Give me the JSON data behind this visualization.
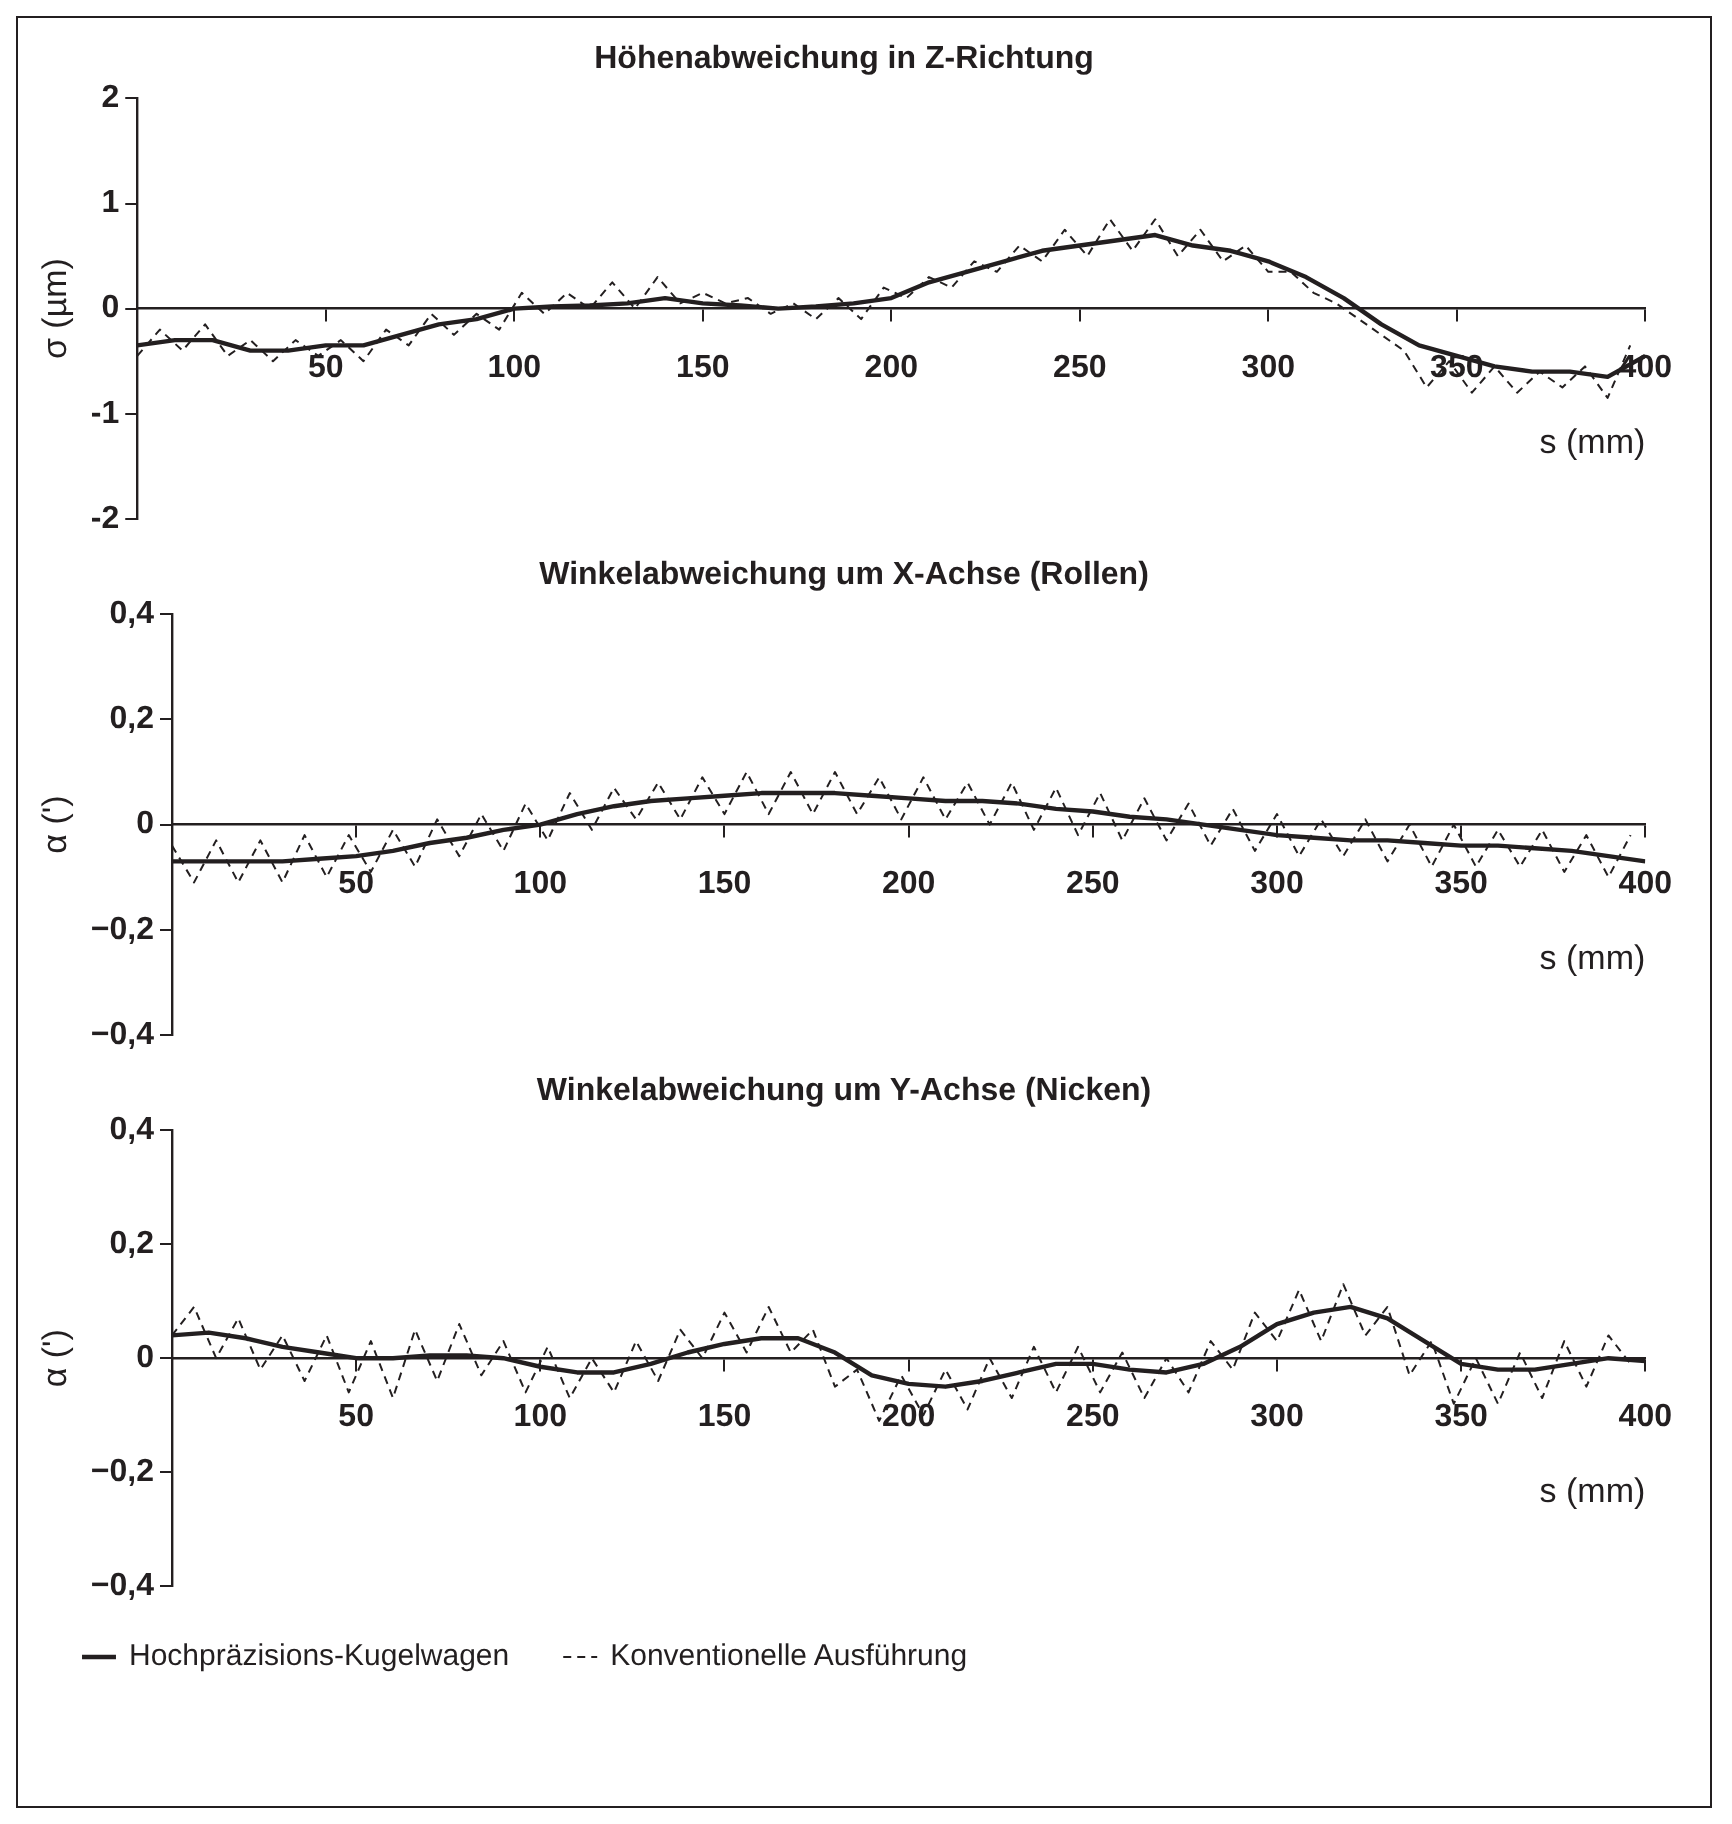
{
  "chart_data": [
    {
      "type": "line",
      "title": "Höhenabweichung in Z-Richtung",
      "ylabel": "σ (µm)",
      "xlabel": "s (mm)",
      "xlim": [
        0,
        400
      ],
      "xticks": [
        50,
        100,
        150,
        200,
        250,
        300,
        350,
        400
      ],
      "ylim": [
        -2,
        2
      ],
      "yticks": [
        -2,
        -1,
        0,
        1,
        2
      ],
      "grid": false,
      "marker": "none",
      "series": [
        {
          "color": "#231f20",
          "line_style": "solid",
          "x": [
            0,
            10,
            20,
            30,
            40,
            50,
            60,
            70,
            80,
            90,
            100,
            110,
            120,
            130,
            140,
            150,
            160,
            170,
            180,
            190,
            200,
            210,
            220,
            230,
            240,
            250,
            260,
            270,
            280,
            290,
            300,
            310,
            320,
            330,
            340,
            350,
            360,
            370,
            380,
            390,
            400
          ],
          "values": [
            -0.35,
            -0.3,
            -0.3,
            -0.4,
            -0.4,
            -0.35,
            -0.35,
            -0.25,
            -0.15,
            -0.1,
            0,
            0.02,
            0.03,
            0.05,
            0.1,
            0.05,
            0.03,
            0,
            0.02,
            0.05,
            0.1,
            0.25,
            0.35,
            0.45,
            0.55,
            0.6,
            0.65,
            0.7,
            0.6,
            0.55,
            0.45,
            0.3,
            0.1,
            -0.15,
            -0.35,
            -0.45,
            -0.55,
            -0.6,
            -0.6,
            -0.65,
            -0.45
          ]
        },
        {
          "color": "#231f20",
          "line_style": "dashed",
          "x": [
            0,
            6,
            12,
            18,
            24,
            30,
            36,
            42,
            48,
            54,
            60,
            66,
            72,
            78,
            84,
            90,
            96,
            102,
            108,
            114,
            120,
            126,
            132,
            138,
            144,
            150,
            156,
            162,
            168,
            174,
            180,
            186,
            192,
            198,
            204,
            210,
            216,
            222,
            228,
            234,
            240,
            246,
            252,
            258,
            264,
            270,
            276,
            282,
            288,
            294,
            300,
            306,
            312,
            318,
            324,
            330,
            336,
            342,
            348,
            354,
            360,
            366,
            372,
            378,
            384,
            390,
            396
          ],
          "values": [
            -0.45,
            -0.2,
            -0.4,
            -0.15,
            -0.45,
            -0.3,
            -0.5,
            -0.3,
            -0.45,
            -0.3,
            -0.5,
            -0.2,
            -0.35,
            -0.05,
            -0.25,
            -0.05,
            -0.2,
            0.15,
            -0.05,
            0.15,
            0,
            0.25,
            0,
            0.3,
            0.05,
            0.15,
            0.05,
            0.1,
            -0.05,
            0.05,
            -0.1,
            0.1,
            -0.1,
            0.2,
            0.1,
            0.3,
            0.2,
            0.45,
            0.35,
            0.6,
            0.45,
            0.75,
            0.5,
            0.85,
            0.55,
            0.85,
            0.5,
            0.75,
            0.45,
            0.6,
            0.35,
            0.35,
            0.15,
            0.05,
            -0.1,
            -0.25,
            -0.4,
            -0.75,
            -0.5,
            -0.8,
            -0.55,
            -0.8,
            -0.6,
            -0.75,
            -0.55,
            -0.85,
            -0.35
          ]
        }
      ]
    },
    {
      "type": "line",
      "title": "Winkelabweichung um X-Achse (Rollen)",
      "ylabel": "α (')",
      "xlabel": "s (mm)",
      "xlim": [
        0,
        400
      ],
      "xticks": [
        50,
        100,
        150,
        200,
        250,
        300,
        350,
        400
      ],
      "ylim": [
        -0.4,
        0.4
      ],
      "yticks": [
        {
          "value": -0.4,
          "label": "−0,4"
        },
        {
          "value": -0.2,
          "label": "−0,2"
        },
        0,
        {
          "value": 0.2,
          "label": "0,2"
        },
        {
          "value": 0.4,
          "label": "0,4"
        }
      ],
      "grid": false,
      "marker": "none",
      "series": [
        {
          "color": "#231f20",
          "line_style": "solid",
          "x": [
            0,
            10,
            20,
            30,
            40,
            50,
            60,
            70,
            80,
            90,
            100,
            110,
            120,
            130,
            140,
            150,
            160,
            170,
            180,
            190,
            200,
            210,
            220,
            230,
            240,
            250,
            260,
            270,
            280,
            290,
            300,
            310,
            320,
            330,
            340,
            350,
            360,
            370,
            380,
            390,
            400
          ],
          "values": [
            -0.07,
            -0.07,
            -0.07,
            -0.07,
            -0.065,
            -0.06,
            -0.05,
            -0.035,
            -0.025,
            -0.01,
            0,
            0.02,
            0.035,
            0.045,
            0.05,
            0.055,
            0.06,
            0.06,
            0.06,
            0.055,
            0.05,
            0.045,
            0.045,
            0.04,
            0.03,
            0.025,
            0.015,
            0.01,
            0,
            -0.01,
            -0.02,
            -0.025,
            -0.03,
            -0.03,
            -0.035,
            -0.04,
            -0.04,
            -0.045,
            -0.05,
            -0.06,
            -0.07
          ]
        },
        {
          "color": "#231f20",
          "line_style": "dashed",
          "x": [
            0,
            6,
            12,
            18,
            24,
            30,
            36,
            42,
            48,
            54,
            60,
            66,
            72,
            78,
            84,
            90,
            96,
            102,
            108,
            114,
            120,
            126,
            132,
            138,
            144,
            150,
            156,
            162,
            168,
            174,
            180,
            186,
            192,
            198,
            204,
            210,
            216,
            222,
            228,
            234,
            240,
            246,
            252,
            258,
            264,
            270,
            276,
            282,
            288,
            294,
            300,
            306,
            312,
            318,
            324,
            330,
            336,
            342,
            348,
            354,
            360,
            366,
            372,
            378,
            384,
            390,
            396
          ],
          "values": [
            -0.04,
            -0.11,
            -0.03,
            -0.11,
            -0.03,
            -0.11,
            -0.02,
            -0.1,
            -0.02,
            -0.09,
            -0.01,
            -0.08,
            0.01,
            -0.06,
            0.02,
            -0.05,
            0.04,
            -0.03,
            0.06,
            -0.01,
            0.07,
            0.01,
            0.08,
            0.01,
            0.09,
            0.02,
            0.1,
            0.02,
            0.1,
            0.02,
            0.1,
            0.02,
            0.09,
            0.01,
            0.09,
            0.01,
            0.08,
            0,
            0.08,
            -0.01,
            0.07,
            -0.02,
            0.06,
            -0.03,
            0.05,
            -0.03,
            0.04,
            -0.04,
            0.03,
            -0.05,
            0.02,
            -0.06,
            0.01,
            -0.06,
            0.01,
            -0.07,
            0,
            -0.08,
            0,
            -0.08,
            -0.01,
            -0.08,
            -0.01,
            -0.09,
            -0.02,
            -0.1,
            -0.02
          ]
        }
      ]
    },
    {
      "type": "line",
      "title": "Winkelabweichung um Y-Achse (Nicken)",
      "ylabel": "α (')",
      "xlabel": "s (mm)",
      "xlim": [
        0,
        400
      ],
      "xticks": [
        50,
        100,
        150,
        200,
        250,
        300,
        350,
        400
      ],
      "ylim": [
        -0.4,
        0.4
      ],
      "yticks": [
        {
          "value": -0.4,
          "label": "−0,4"
        },
        {
          "value": -0.2,
          "label": "−0,2"
        },
        0,
        {
          "value": 0.2,
          "label": "0,2"
        },
        {
          "value": 0.4,
          "label": "0,4"
        }
      ],
      "grid": false,
      "marker": "none",
      "legend": "bottom",
      "series": [
        {
          "name": "Hochpräzisions-Kugelwagen",
          "color": "#231f20",
          "line_style": "solid",
          "x": [
            0,
            10,
            20,
            30,
            40,
            50,
            60,
            70,
            80,
            90,
            100,
            110,
            120,
            130,
            140,
            150,
            160,
            170,
            180,
            190,
            200,
            210,
            220,
            230,
            240,
            250,
            260,
            270,
            280,
            290,
            300,
            310,
            320,
            330,
            340,
            350,
            360,
            370,
            380,
            390,
            400
          ],
          "values": [
            0.04,
            0.045,
            0.035,
            0.02,
            0.01,
            0,
            0,
            0.005,
            0.005,
            0,
            -0.015,
            -0.025,
            -0.025,
            -0.01,
            0.01,
            0.025,
            0.035,
            0.035,
            0.01,
            -0.03,
            -0.045,
            -0.05,
            -0.04,
            -0.025,
            -0.01,
            -0.01,
            -0.02,
            -0.025,
            -0.01,
            0.02,
            0.06,
            0.08,
            0.09,
            0.07,
            0.03,
            -0.01,
            -0.02,
            -0.02,
            -0.01,
            0,
            -0.005
          ]
        },
        {
          "name": "Konventionelle Ausführung",
          "color": "#231f20",
          "line_style": "dashed",
          "x": [
            0,
            6,
            12,
            18,
            24,
            30,
            36,
            42,
            48,
            54,
            60,
            66,
            72,
            78,
            84,
            90,
            96,
            102,
            108,
            114,
            120,
            126,
            132,
            138,
            144,
            150,
            156,
            162,
            168,
            174,
            180,
            186,
            192,
            198,
            204,
            210,
            216,
            222,
            228,
            234,
            240,
            246,
            252,
            258,
            264,
            270,
            276,
            282,
            288,
            294,
            300,
            306,
            312,
            318,
            324,
            330,
            336,
            342,
            348,
            354,
            360,
            366,
            372,
            378,
            384,
            390,
            396
          ],
          "values": [
            0.04,
            0.09,
            0,
            0.07,
            -0.02,
            0.04,
            -0.04,
            0.04,
            -0.06,
            0.03,
            -0.07,
            0.05,
            -0.04,
            0.06,
            -0.03,
            0.03,
            -0.06,
            0.02,
            -0.07,
            0,
            -0.06,
            0.03,
            -0.04,
            0.05,
            0,
            0.08,
            0.01,
            0.09,
            0.01,
            0.05,
            -0.05,
            -0.02,
            -0.11,
            -0.03,
            -0.1,
            -0.02,
            -0.09,
            0,
            -0.07,
            0.02,
            -0.06,
            0.02,
            -0.06,
            0.01,
            -0.07,
            0,
            -0.06,
            0.03,
            -0.02,
            0.08,
            0.03,
            0.12,
            0.03,
            0.13,
            0.04,
            0.09,
            -0.03,
            0.03,
            -0.08,
            0,
            -0.08,
            0.01,
            -0.07,
            0.03,
            -0.05,
            0.04,
            -0.01
          ]
        }
      ]
    }
  ]
}
